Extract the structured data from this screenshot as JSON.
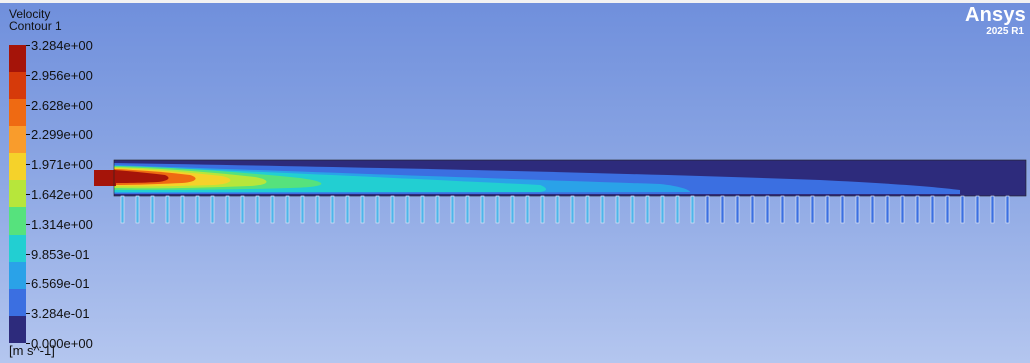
{
  "legend": {
    "title": "Velocity",
    "subtitle": "Contour 1",
    "units": "[m s^-1]",
    "ticks": [
      "3.284e+00",
      "2.956e+00",
      "2.628e+00",
      "2.299e+00",
      "1.971e+00",
      "1.642e+00",
      "1.314e+00",
      "9.853e-01",
      "6.569e-01",
      "3.284e-01",
      "0.000e+00"
    ],
    "colors": [
      "#a51409",
      "#d63a0a",
      "#ef6a12",
      "#f99c2c",
      "#f5d22a",
      "#b7e63b",
      "#56e27d",
      "#22cfd2",
      "#2aa2e8",
      "#3b6fe1",
      "#2d2b7c"
    ]
  },
  "branding": {
    "name": "Ansys",
    "version": "2025 R1"
  },
  "colors": {
    "background_top": "#6f8fdc",
    "background_bottom": "#b4c6ef",
    "low_velocity": "#2d2b7c"
  }
}
